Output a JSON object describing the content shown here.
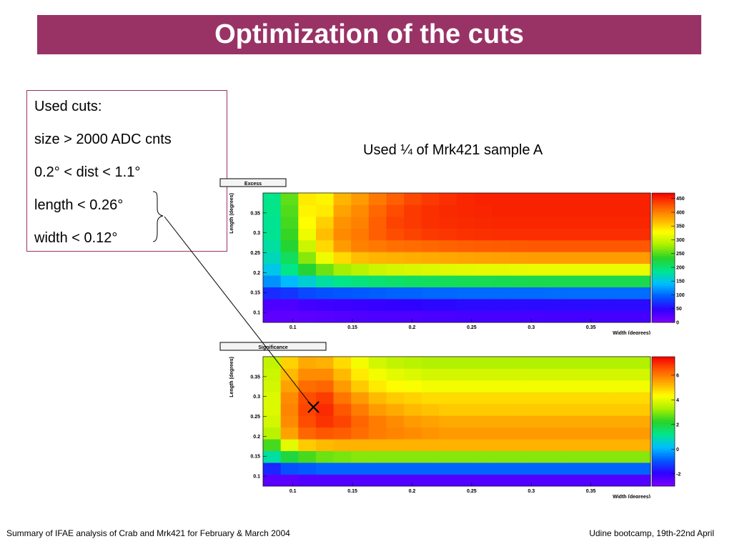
{
  "title": "Optimization of the cuts",
  "cuts_box": {
    "heading": "Used cuts:",
    "lines": [
      "size > 2000 ADC cnts",
      "0.2° < dist < 1.1°",
      "length < 0.26°",
      "width < 0.12°"
    ]
  },
  "note": "Used ¼ of Mrk421 sample A",
  "footer": {
    "left": "Summary of IFAE analysis of Crab and Mrk421 for February & March 2004",
    "right": "Udine bootcamp, 19th-22nd April"
  },
  "chart_data": [
    {
      "type": "heatmap",
      "title": "Excess",
      "xlabel": "Width (degrees)",
      "ylabel": "Length (degrees)",
      "xlim": [
        0.075,
        0.4
      ],
      "ylim": [
        0.075,
        0.4
      ],
      "xticks": [
        "0.1",
        "0.15",
        "0.2",
        "0.25",
        "0.3",
        "0.35"
      ],
      "yticks": [
        "0.1",
        "0.15",
        "0.2",
        "0.25",
        "0.3",
        "0.35"
      ],
      "colorbar": {
        "min": 0,
        "max": 470,
        "ticks": [
          "0",
          "50",
          "100",
          "150",
          "200",
          "250",
          "300",
          "350",
          "400",
          "450"
        ]
      },
      "values": [
        [
          20,
          20,
          22,
          24,
          26,
          28,
          30,
          30,
          30,
          32,
          32,
          34,
          34,
          34,
          34,
          34,
          35,
          35,
          35,
          35,
          35,
          35
        ],
        [
          30,
          30,
          35,
          38,
          40,
          42,
          44,
          46,
          48,
          50,
          50,
          52,
          52,
          52,
          52,
          52,
          53,
          53,
          53,
          53,
          53,
          53
        ],
        [
          70,
          75,
          85,
          90,
          92,
          94,
          96,
          98,
          98,
          100,
          100,
          102,
          102,
          102,
          102,
          102,
          103,
          103,
          103,
          103,
          103,
          103
        ],
        [
          120,
          140,
          160,
          180,
          190,
          195,
          200,
          205,
          208,
          210,
          212,
          214,
          215,
          216,
          217,
          218,
          218,
          218,
          218,
          218,
          218,
          218
        ],
        [
          150,
          190,
          230,
          260,
          280,
          290,
          300,
          305,
          308,
          310,
          312,
          314,
          315,
          316,
          317,
          318,
          318,
          318,
          318,
          318,
          318,
          318
        ],
        [
          170,
          210,
          270,
          320,
          350,
          365,
          370,
          372,
          374,
          376,
          378,
          380,
          381,
          382,
          383,
          384,
          384,
          384,
          384,
          384,
          384,
          384
        ],
        [
          180,
          230,
          300,
          350,
          385,
          400,
          405,
          410,
          412,
          415,
          418,
          420,
          421,
          422,
          423,
          424,
          424,
          424,
          424,
          424,
          424,
          424
        ],
        [
          185,
          240,
          320,
          365,
          395,
          405,
          420,
          430,
          435,
          440,
          442,
          444,
          445,
          446,
          446,
          446,
          446,
          446,
          446,
          446,
          446,
          446
        ],
        [
          185,
          245,
          330,
          355,
          390,
          400,
          420,
          435,
          440,
          445,
          447,
          448,
          449,
          450,
          450,
          450,
          450,
          450,
          450,
          450,
          450,
          450
        ],
        [
          190,
          250,
          335,
          340,
          380,
          395,
          415,
          430,
          440,
          445,
          448,
          450,
          451,
          452,
          452,
          452,
          452,
          452,
          452,
          452,
          452,
          452
        ],
        [
          190,
          255,
          340,
          335,
          370,
          385,
          405,
          420,
          432,
          440,
          446,
          450,
          452,
          453,
          453,
          453,
          453,
          453,
          453,
          453,
          453,
          453
        ]
      ]
    },
    {
      "type": "heatmap",
      "title": "Significance",
      "xlabel": "Width (degrees)",
      "ylabel": "Length (degrees)",
      "xlim": [
        0.075,
        0.4
      ],
      "ylim": [
        0.075,
        0.4
      ],
      "xticks": [
        "0.1",
        "0.15",
        "0.2",
        "0.25",
        "0.3",
        "0.35"
      ],
      "yticks": [
        "0.1",
        "0.15",
        "0.2",
        "0.25",
        "0.3",
        "0.35"
      ],
      "colorbar": {
        "min": -3,
        "max": 7.5,
        "ticks": [
          "-2",
          "0",
          "2",
          "4",
          "6"
        ]
      },
      "best_cut": {
        "x": 0.117,
        "y": 0.262
      },
      "values": [
        [
          -2.5,
          -2.5,
          -2.4,
          -2.4,
          -2.4,
          -2.4,
          -2.4,
          -2.4,
          -2.4,
          -2.4,
          -2.4,
          -2.4,
          -2.4,
          -2.4,
          -2.4,
          -2.4,
          -2.4,
          -2.4,
          -2.4,
          -2.4,
          -2.4,
          -2.4
        ],
        [
          -1.5,
          -1.0,
          -0.9,
          -0.8,
          -0.8,
          -0.8,
          -0.8,
          -0.8,
          -0.8,
          -0.8,
          -0.8,
          -0.8,
          -0.8,
          -0.8,
          -0.8,
          -0.8,
          -0.8,
          -0.8,
          -0.8,
          -0.8,
          -0.8,
          -0.8
        ],
        [
          1.0,
          2.0,
          2.5,
          2.8,
          2.9,
          3.0,
          3.0,
          3.0,
          3.0,
          3.0,
          3.0,
          3.0,
          3.0,
          3.0,
          3.0,
          3.0,
          3.0,
          3.0,
          3.0,
          3.0,
          3.0,
          3.0
        ],
        [
          2.5,
          4.0,
          5.0,
          5.2,
          5.3,
          5.3,
          5.3,
          5.3,
          5.3,
          5.3,
          5.3,
          5.3,
          5.3,
          5.3,
          5.3,
          5.3,
          5.3,
          5.3,
          5.3,
          5.3,
          5.3,
          5.3
        ],
        [
          3.5,
          5.5,
          6.3,
          6.5,
          6.4,
          6.2,
          6.0,
          5.9,
          5.8,
          5.7,
          5.6,
          5.6,
          5.6,
          5.6,
          5.6,
          5.6,
          5.6,
          5.6,
          5.6,
          5.6,
          5.6,
          5.6
        ],
        [
          3.8,
          5.8,
          6.6,
          6.9,
          6.7,
          6.3,
          6.0,
          5.8,
          5.6,
          5.5,
          5.4,
          5.4,
          5.4,
          5.4,
          5.4,
          5.4,
          5.4,
          5.4,
          5.4,
          5.4,
          5.4,
          5.4
        ],
        [
          3.9,
          5.9,
          6.7,
          7.0,
          6.5,
          6.0,
          5.6,
          5.4,
          5.2,
          5.1,
          5.0,
          5.0,
          5.0,
          5.0,
          5.0,
          5.0,
          5.0,
          5.0,
          5.0,
          5.0,
          5.0,
          5.0
        ],
        [
          3.9,
          5.8,
          6.6,
          6.8,
          6.1,
          5.6,
          5.2,
          5.0,
          4.9,
          4.8,
          4.8,
          4.8,
          4.8,
          4.8,
          4.8,
          4.8,
          4.8,
          4.8,
          4.8,
          4.8,
          4.8,
          4.8
        ],
        [
          3.8,
          5.5,
          6.2,
          6.3,
          5.6,
          5.0,
          4.6,
          4.4,
          4.3,
          4.2,
          4.2,
          4.2,
          4.2,
          4.2,
          4.2,
          4.2,
          4.2,
          4.2,
          4.2,
          4.2,
          4.2,
          4.2
        ],
        [
          3.7,
          5.2,
          5.8,
          5.8,
          5.2,
          4.6,
          4.2,
          4.0,
          3.9,
          3.8,
          3.8,
          3.8,
          3.8,
          3.8,
          3.8,
          3.8,
          3.8,
          3.8,
          3.8,
          3.8,
          3.8,
          3.8
        ],
        [
          3.6,
          4.9,
          5.4,
          5.3,
          4.8,
          4.2,
          3.8,
          3.6,
          3.5,
          3.4,
          3.4,
          3.4,
          3.4,
          3.4,
          3.4,
          3.4,
          3.4,
          3.4,
          3.4,
          3.4,
          3.4,
          3.4
        ]
      ]
    }
  ]
}
